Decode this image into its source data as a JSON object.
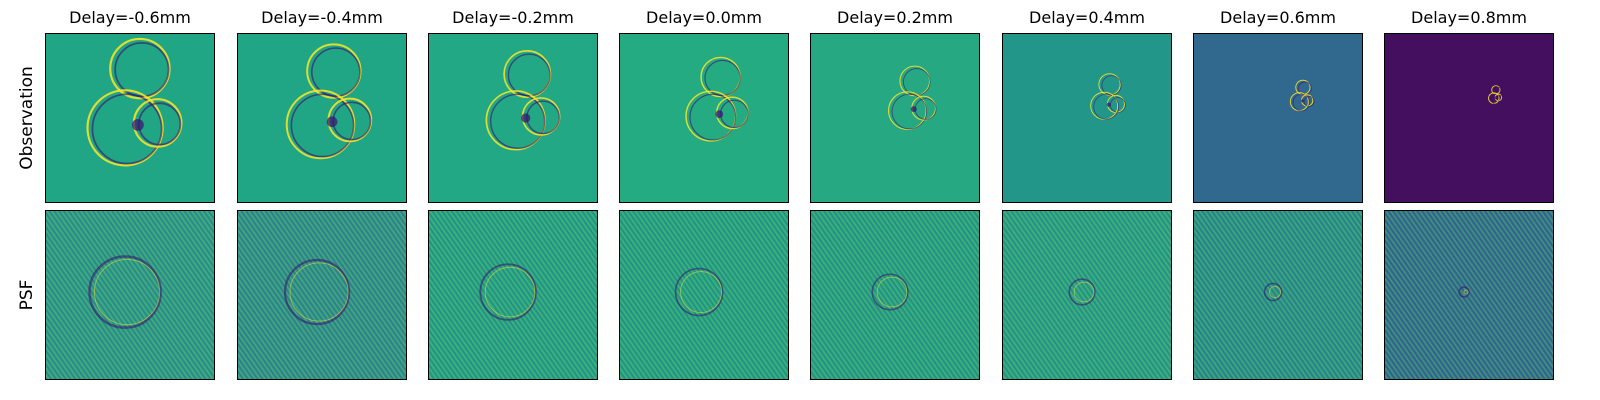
{
  "figure": {
    "row_labels": [
      "Observation",
      "PSF"
    ],
    "columns": [
      {
        "title": "Delay=-0.6mm",
        "obs_bg": "#21a685",
        "psf_bg": "#2a9a8a",
        "ring_scale": 1.0
      },
      {
        "title": "Delay=-0.4mm",
        "obs_bg": "#21a685",
        "psf_bg": "#2d8f8c",
        "ring_scale": 0.9
      },
      {
        "title": "Delay=-0.2mm",
        "obs_bg": "#22a884",
        "psf_bg": "#22a386",
        "ring_scale": 0.78
      },
      {
        "title": "Delay=0.0mm",
        "obs_bg": "#25ab82",
        "psf_bg": "#21a385",
        "ring_scale": 0.66
      },
      {
        "title": "Delay=0.2mm",
        "obs_bg": "#26a883",
        "psf_bg": "#23a185",
        "ring_scale": 0.5
      },
      {
        "title": "Delay=0.4mm",
        "obs_bg": "#23968a",
        "psf_bg": "#25a186",
        "ring_scale": 0.36
      },
      {
        "title": "Delay=0.6mm",
        "obs_bg": "#31688e",
        "psf_bg": "#26908b",
        "ring_scale": 0.24
      },
      {
        "title": "Delay=0.8mm",
        "obs_bg": "#440f5e",
        "psf_bg": "#2f6b8e",
        "ring_scale": 0.14
      }
    ],
    "colors": {
      "bright": "#fde725",
      "mid": "#5ec962",
      "dark": "#3b0f70"
    }
  }
}
